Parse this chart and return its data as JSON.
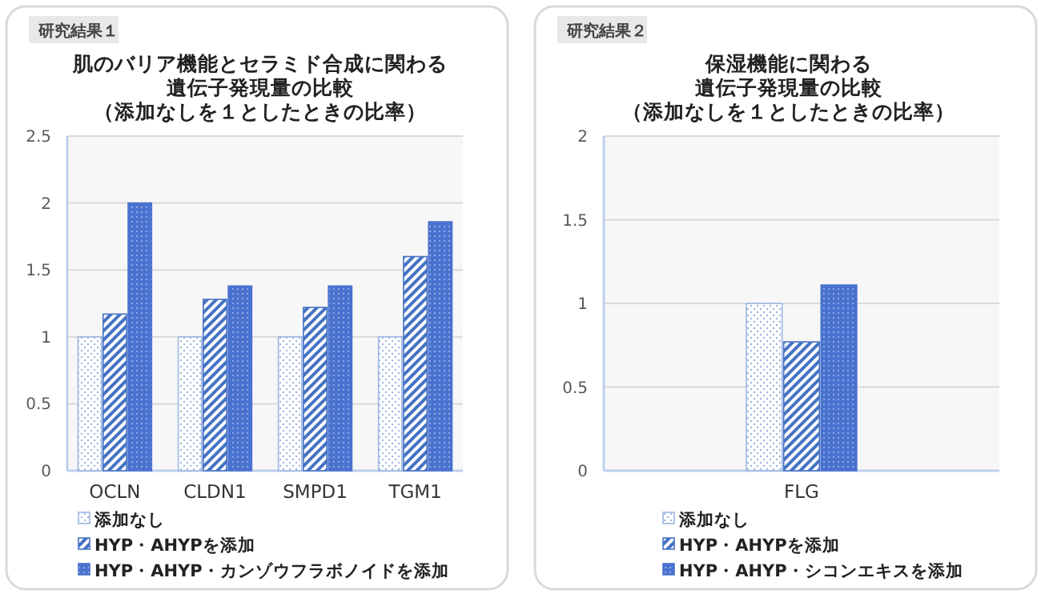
{
  "chart_data": [
    {
      "type": "bar",
      "title": "肌のバリア機能とセラミド合成に関わる",
      "subtitle": "遺伝子発現量の比較",
      "annotations": [
        "研究結果１",
        "（添加なしを１としたときの比率）"
      ],
      "categories": [
        "OCLN",
        "CLDN1",
        "SMPD1",
        "TGM1"
      ],
      "series": [
        {
          "name": "添加なし",
          "color": "#9db6e2",
          "values": [
            1,
            1,
            1,
            1
          ]
        },
        {
          "name": "HYP・AHYPを添加",
          "color": "#4472c4",
          "values": [
            1.17,
            1.28,
            1.22,
            1.6
          ]
        },
        {
          "name": "HYP・AHYP・カンゾウフラボノイドを添加",
          "color": "#4a72cf",
          "values": [
            2.0,
            1.38,
            1.38,
            1.86
          ]
        }
      ],
      "ylim": [
        0,
        2.5
      ],
      "yticks": [
        0,
        0.5,
        1,
        1.5,
        2,
        2.5
      ],
      "grid": "y",
      "legend": "bottom"
    },
    {
      "type": "bar",
      "title": "保湿機能に関わる",
      "subtitle": "遺伝子発現量の比較",
      "annotations": [
        "研究結果２",
        "（添加なしを１としたときの比率）"
      ],
      "categories": [
        "FLG"
      ],
      "series": [
        {
          "name": "添加なし",
          "color": "#9db6e2",
          "values": [
            1
          ]
        },
        {
          "name": "HYP・AHYPを添加",
          "color": "#4472c4",
          "values": [
            0.77
          ]
        },
        {
          "name": "HYP・AHYP・シコンエキスを添加",
          "color": "#4a72cf",
          "values": [
            1.11
          ]
        }
      ],
      "ylim": [
        0,
        2
      ],
      "yticks": [
        0,
        0.5,
        1,
        1.5,
        2
      ],
      "grid": "y",
      "legend": "bottom"
    }
  ]
}
